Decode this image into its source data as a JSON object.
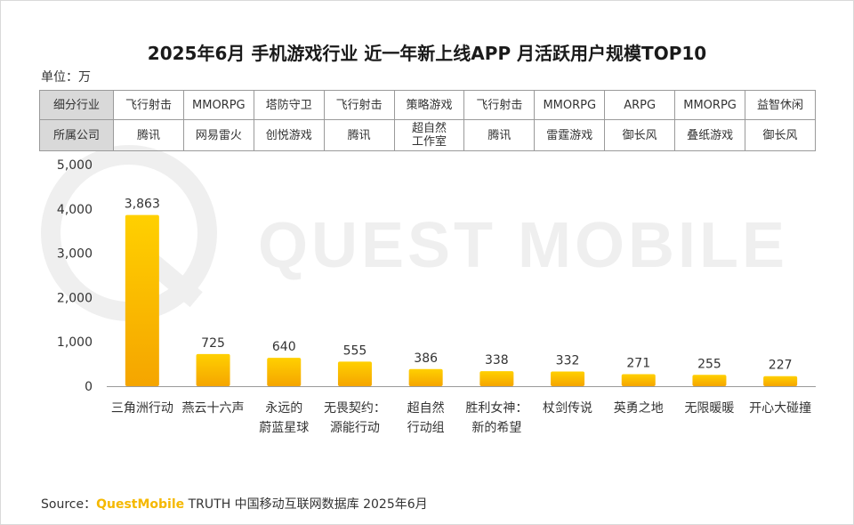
{
  "title": "2025年6月 手机游戏行业 近一年新上线APP 月活跃用户规模TOP10",
  "unit_label": "单位：万",
  "watermark": "QUEST MOBILE",
  "table": {
    "row1_header": "细分行业",
    "row2_header": "所属公司",
    "industries": [
      "飞行射击",
      "MMORPG",
      "塔防守卫",
      "飞行射击",
      "策略游戏",
      "飞行射击",
      "MMORPG",
      "ARPG",
      "MMORPG",
      "益智休闲"
    ],
    "companies": [
      "腾讯",
      "网易雷火",
      "创悦游戏",
      "腾讯",
      "超自然\n工作室",
      "腾讯",
      "雷霆游戏",
      "御长风",
      "叠纸游戏",
      "御长风"
    ]
  },
  "chart_data": {
    "type": "bar",
    "categories": [
      "三角洲行动",
      "燕云十六声",
      "永远的\n蔚蓝星球",
      "无畏契约：\n源能行动",
      "超自然\n行动组",
      "胜利女神：\n新的希望",
      "杖剑传说",
      "英勇之地",
      "无限暖暖",
      "开心大碰撞"
    ],
    "values": [
      3863,
      725,
      640,
      555,
      386,
      338,
      332,
      271,
      255,
      227
    ],
    "value_labels": [
      "3,863",
      "725",
      "640",
      "555",
      "386",
      "338",
      "332",
      "271",
      "255",
      "227"
    ],
    "y_ticks": [
      0,
      1000,
      2000,
      3000,
      4000,
      5000
    ],
    "y_tick_labels": [
      "0",
      "1,000",
      "2,000",
      "3,000",
      "4,000",
      "5,000"
    ],
    "ylim": [
      0,
      5000
    ],
    "bar_color_top": "#ffd000",
    "bar_color_bottom": "#f5a500"
  },
  "source": {
    "prefix": "Source：",
    "brand": "QuestMobile",
    "rest": "TRUTH 中国移动互联网数据库 2025年6月"
  }
}
